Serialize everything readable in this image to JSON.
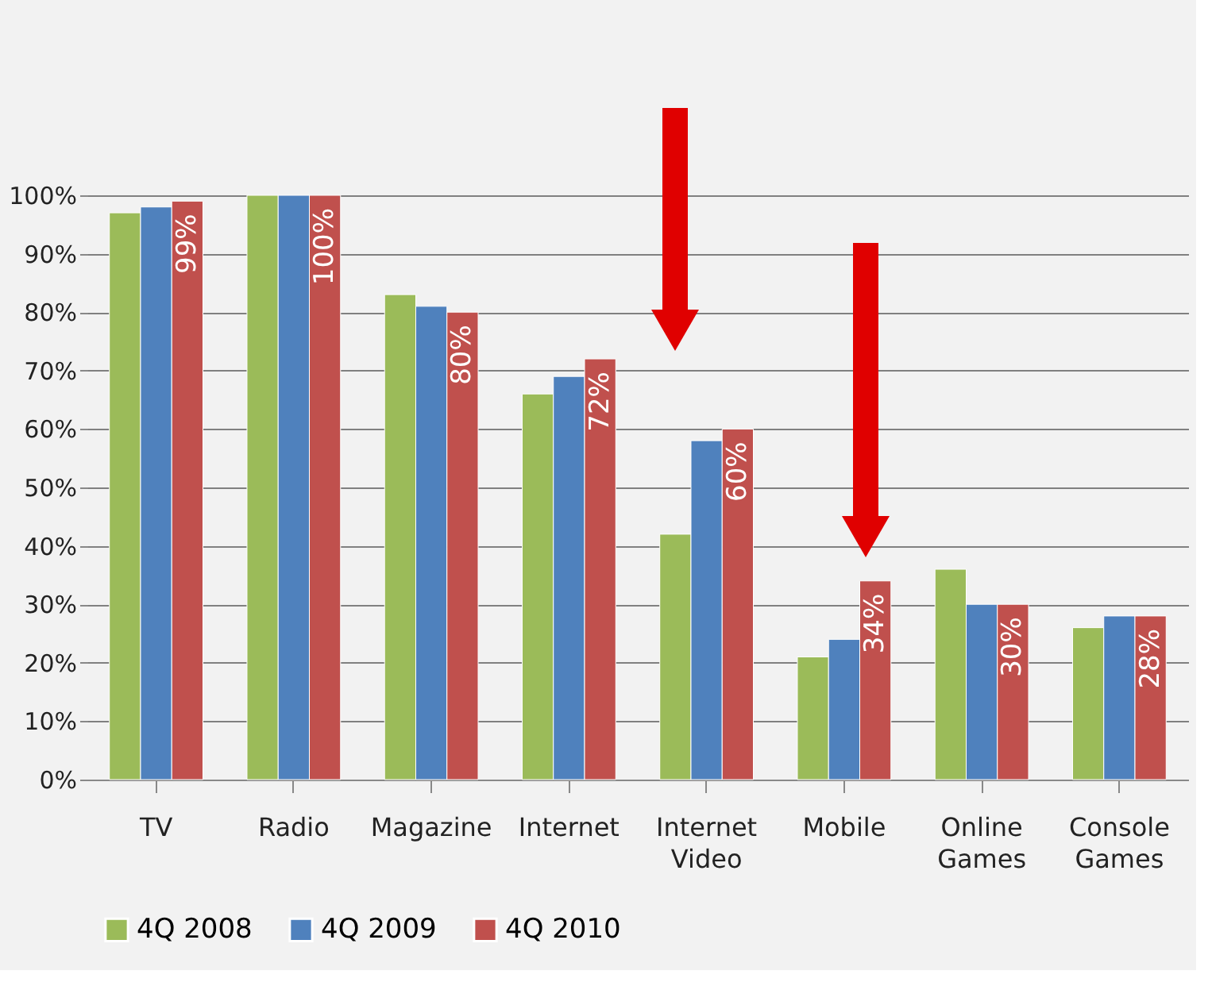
{
  "chart_data": {
    "type": "bar",
    "categories": [
      "TV",
      "Radio",
      "Magazine",
      "Internet",
      "Internet Video",
      "Mobile",
      "Online Games",
      "Console Games"
    ],
    "series": [
      {
        "name": "4Q 2008",
        "color": "#9bbb59",
        "values": [
          97,
          100,
          83,
          66,
          42,
          21,
          36,
          26
        ]
      },
      {
        "name": "4Q 2009",
        "color": "#4f81bd",
        "values": [
          98,
          100,
          81,
          69,
          58,
          24,
          30,
          28
        ]
      },
      {
        "name": "4Q 2010",
        "color": "#c0504d",
        "values": [
          99,
          100,
          80,
          72,
          60,
          34,
          30,
          28
        ],
        "value_labels": [
          "99%",
          "100%",
          "80%",
          "72%",
          "60%",
          "34%",
          "30%",
          "28%"
        ]
      }
    ],
    "ylim": [
      0,
      100
    ],
    "yticks": [
      {
        "value": 0,
        "label": "0%"
      },
      {
        "value": 10,
        "label": "10%"
      },
      {
        "value": 20,
        "label": "20%"
      },
      {
        "value": 30,
        "label": "30%"
      },
      {
        "value": 40,
        "label": "40%"
      },
      {
        "value": 50,
        "label": "50%"
      },
      {
        "value": 60,
        "label": "60%"
      },
      {
        "value": 70,
        "label": "70%"
      },
      {
        "value": 80,
        "label": "80%"
      },
      {
        "value": 90,
        "label": "90%"
      },
      {
        "value": 100,
        "label": "100%"
      }
    ],
    "grid": "y",
    "legend": "bottom"
  }
}
